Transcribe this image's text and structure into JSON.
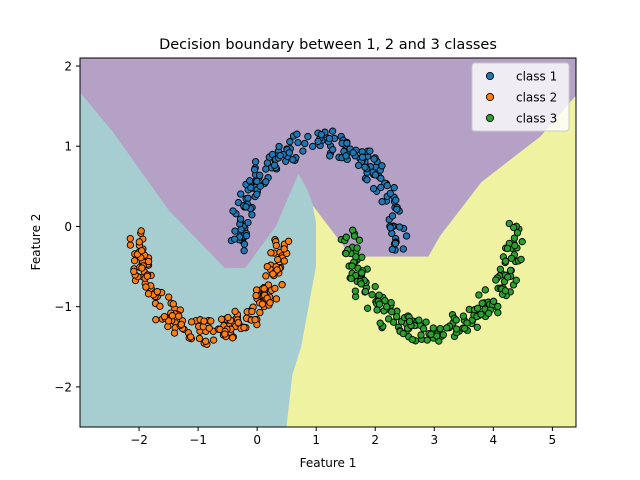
{
  "chart_data": {
    "type": "scatter",
    "title": "Decision boundary between 1, 2 and 3 classes",
    "xlabel": "Feature 1",
    "ylabel": "Feature 2",
    "xlim": [
      -3.0,
      5.4
    ],
    "ylim": [
      -2.5,
      2.1
    ],
    "x_ticks": [
      -2,
      -1,
      0,
      1,
      2,
      3,
      4,
      5
    ],
    "y_ticks": [
      -2,
      -1,
      0,
      1,
      2
    ],
    "x_tick_labels": [
      "−2",
      "−1",
      "0",
      "1",
      "2",
      "3",
      "4",
      "5"
    ],
    "y_tick_labels": [
      "−2",
      "−1",
      "0",
      "1",
      "2"
    ],
    "grid": false,
    "legend_position": "top-right",
    "regions": [
      {
        "class": "class 1",
        "color": "#b4a1c5",
        "polygon": [
          [
            -3.0,
            2.1
          ],
          [
            5.4,
            2.1
          ],
          [
            5.4,
            1.63
          ],
          [
            4.8,
            1.12
          ],
          [
            3.8,
            0.55
          ],
          [
            3.1,
            -0.12
          ],
          [
            2.9,
            -0.38
          ],
          [
            1.6,
            -0.38
          ],
          [
            0.95,
            0.25
          ],
          [
            0.85,
            0.45
          ],
          [
            0.7,
            0.65
          ],
          [
            0.32,
            0.0
          ],
          [
            -0.2,
            -0.52
          ],
          [
            -0.55,
            -0.52
          ],
          [
            -1.5,
            0.2
          ],
          [
            -2.45,
            1.18
          ],
          [
            -3.0,
            1.67
          ]
        ]
      },
      {
        "class": "class 2",
        "color": "#a6cdd0",
        "polygon": [
          [
            -3.0,
            1.67
          ],
          [
            -2.45,
            1.18
          ],
          [
            -1.5,
            0.2
          ],
          [
            -0.55,
            -0.52
          ],
          [
            -0.2,
            -0.52
          ],
          [
            0.32,
            0.0
          ],
          [
            0.7,
            0.65
          ],
          [
            0.85,
            0.45
          ],
          [
            0.95,
            0.25
          ],
          [
            1.0,
            0.05
          ],
          [
            1.0,
            -0.5
          ],
          [
            0.85,
            -1.1
          ],
          [
            0.75,
            -1.5
          ],
          [
            0.6,
            -1.85
          ],
          [
            0.5,
            -2.5
          ],
          [
            -3.0,
            -2.5
          ]
        ]
      },
      {
        "class": "class 3",
        "color": "#eff2a1",
        "polygon": [
          [
            5.4,
            1.63
          ],
          [
            4.8,
            1.12
          ],
          [
            3.8,
            0.55
          ],
          [
            3.1,
            -0.12
          ],
          [
            2.9,
            -0.38
          ],
          [
            1.6,
            -0.38
          ],
          [
            0.95,
            0.25
          ],
          [
            1.0,
            0.05
          ],
          [
            1.0,
            -0.5
          ],
          [
            0.85,
            -1.1
          ],
          [
            0.75,
            -1.5
          ],
          [
            0.6,
            -1.85
          ],
          [
            0.5,
            -2.5
          ],
          [
            5.4,
            -2.5
          ]
        ]
      }
    ],
    "series": [
      {
        "name": "class 1",
        "color": "#1f77b4",
        "shape": "upper-arc",
        "center": [
          1.05,
          -0.25
        ],
        "radius_x": 1.35,
        "radius_y": 1.3,
        "thickness": 0.15,
        "angle_range_deg": [
          0,
          180
        ],
        "n": 200
      },
      {
        "name": "class 2",
        "color": "#ff7f0e",
        "shape": "lower-arc",
        "center": [
          -0.8,
          -0.1
        ],
        "radius_x": 1.2,
        "radius_y": 1.22,
        "thickness": 0.15,
        "angle_range_deg": [
          180,
          360
        ],
        "n": 200
      },
      {
        "name": "class 3",
        "color": "#2ca02c",
        "shape": "lower-arc",
        "center": [
          2.97,
          -0.05
        ],
        "radius_x": 1.4,
        "radius_y": 1.25,
        "thickness": 0.15,
        "angle_range_deg": [
          180,
          360
        ],
        "n": 200
      }
    ],
    "legend": {
      "entries": [
        "class 1",
        "class 2",
        "class 3"
      ],
      "marker_colors": [
        "#1f77b4",
        "#ff7f0e",
        "#2ca02c"
      ],
      "position": "top-right"
    }
  }
}
